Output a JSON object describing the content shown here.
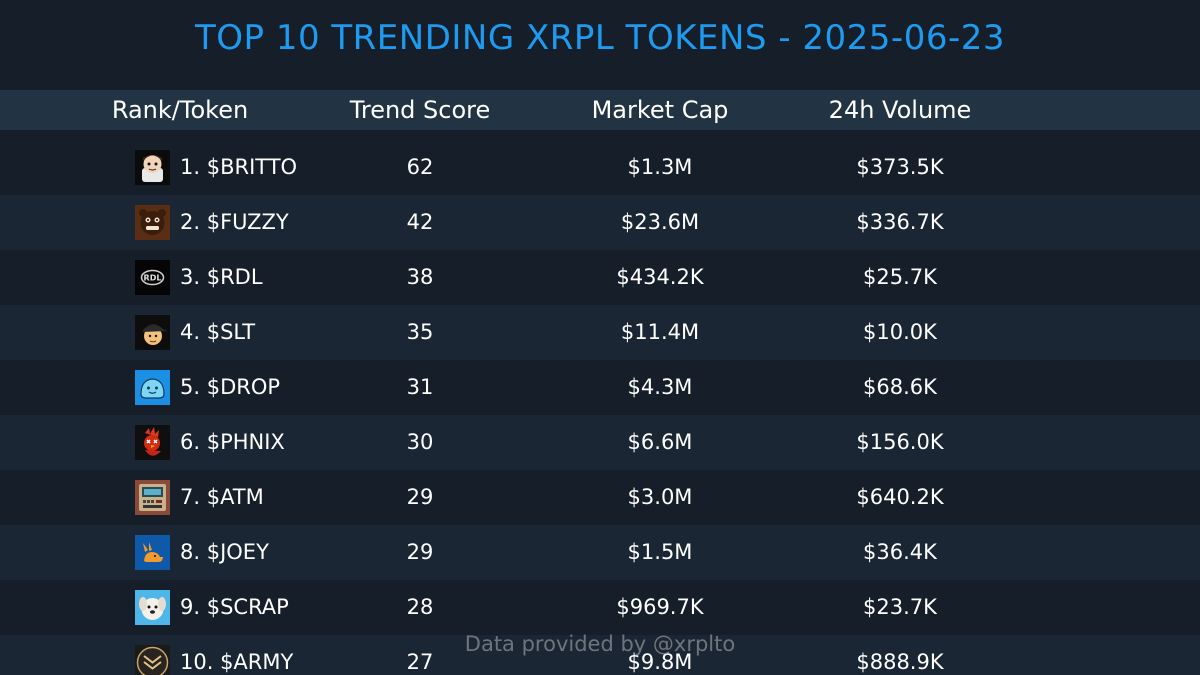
{
  "title": "TOP 10 TRENDING XRPL TOKENS - 2025-06-23",
  "header": {
    "rank_token": "Rank/Token",
    "trend_score": "Trend Score",
    "market_cap": "Market Cap",
    "volume": "24h Volume"
  },
  "rows": [
    {
      "label": "1. $BRITTO",
      "score": "62",
      "cap": "$1.3M",
      "vol": "$373.5K",
      "icon": "cartoon-kid-icon"
    },
    {
      "label": "2. $FUZZY",
      "score": "42",
      "cap": "$23.6M",
      "vol": "$336.7K",
      "icon": "fuzzy-bear-icon"
    },
    {
      "label": "3. $RDL",
      "score": "38",
      "cap": "$434.2K",
      "vol": "$25.7K",
      "icon": "rdl-logo-icon"
    },
    {
      "label": "4. $SLT",
      "score": "35",
      "cap": "$11.4M",
      "vol": "$10.0K",
      "icon": "cap-face-icon"
    },
    {
      "label": "5. $DROP",
      "score": "31",
      "cap": "$4.3M",
      "vol": "$68.6K",
      "icon": "drop-blob-icon"
    },
    {
      "label": "6. $PHNIX",
      "score": "30",
      "cap": "$6.6M",
      "vol": "$156.0K",
      "icon": "phoenix-bird-icon"
    },
    {
      "label": "7. $ATM",
      "score": "29",
      "cap": "$3.0M",
      "vol": "$640.2K",
      "icon": "atm-machine-icon"
    },
    {
      "label": "8. $JOEY",
      "score": "29",
      "cap": "$1.5M",
      "vol": "$36.4K",
      "icon": "kangaroo-icon"
    },
    {
      "label": "9. $SCRAP",
      "score": "28",
      "cap": "$969.7K",
      "vol": "$23.7K",
      "icon": "puppy-icon"
    },
    {
      "label": "10. $ARMY",
      "score": "27",
      "cap": "$9.8M",
      "vol": "$888.9K",
      "icon": "army-emblem-icon"
    }
  ],
  "footer": "Data provided by @xrplto",
  "colors": {
    "background": "#161f29",
    "row_alt": "#1a2633",
    "header_bg": "#223443",
    "title": "#1d9bf0",
    "footer": "#8a8f96"
  }
}
